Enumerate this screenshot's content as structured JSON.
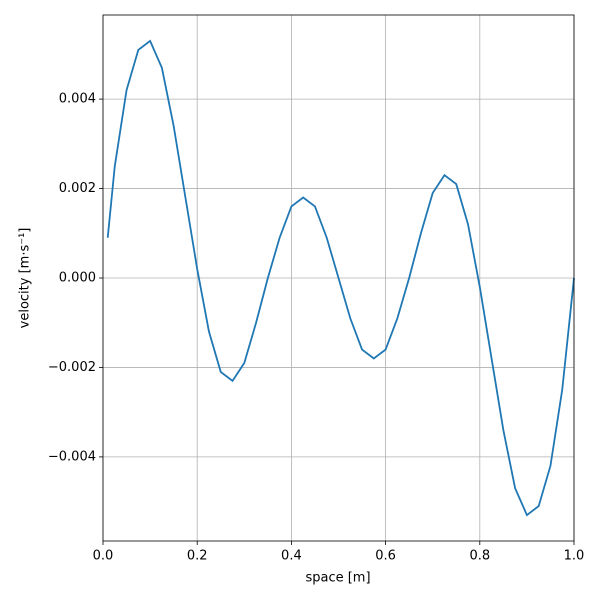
{
  "chart_data": {
    "type": "line",
    "xlabel": "space [m]",
    "ylabel": "velocity [m·s⁻¹]",
    "x": [
      0.01,
      0.025,
      0.05,
      0.075,
      0.1,
      0.125,
      0.15,
      0.175,
      0.2,
      0.225,
      0.25,
      0.275,
      0.3,
      0.325,
      0.35,
      0.375,
      0.4,
      0.425,
      0.45,
      0.475,
      0.5,
      0.525,
      0.55,
      0.575,
      0.6,
      0.625,
      0.65,
      0.675,
      0.7,
      0.725,
      0.75,
      0.775,
      0.8,
      0.825,
      0.85,
      0.875,
      0.9,
      0.925,
      0.95,
      0.975,
      1.0
    ],
    "series": [
      {
        "color": "#1f77b4",
        "values": [
          0.0009,
          0.0025,
          0.0042,
          0.0051,
          0.0053,
          0.0047,
          0.0034,
          0.0018,
          0.0002,
          -0.0012,
          -0.0021,
          -0.0023,
          -0.0019,
          -0.001,
          0.0,
          0.0009,
          0.0016,
          0.0018,
          0.0016,
          0.0009,
          0.0,
          -0.0009,
          -0.0016,
          -0.0018,
          -0.0016,
          -0.0009,
          0.0,
          0.001,
          0.0019,
          0.0023,
          0.0021,
          0.0012,
          -0.0002,
          -0.0018,
          -0.0034,
          -0.0047,
          -0.0053,
          -0.0051,
          -0.0042,
          -0.0025,
          0.0
        ]
      }
    ],
    "xlim": [
      0,
      1
    ],
    "ylim": [
      -0.00588,
      0.00588
    ],
    "xticks": [
      {
        "value": 0,
        "label": "0.0"
      },
      {
        "value": 0.2,
        "label": "0.2"
      },
      {
        "value": 0.4,
        "label": "0.4"
      },
      {
        "value": 0.6,
        "label": "0.6"
      },
      {
        "value": 0.8,
        "label": "0.8"
      },
      {
        "value": 1,
        "label": "1.0"
      }
    ],
    "yticks": [
      {
        "value": -0.004,
        "label": "−0.004"
      },
      {
        "value": -0.002,
        "label": "−0.002"
      },
      {
        "value": 0,
        "label": "0.000"
      },
      {
        "value": 0.002,
        "label": "0.002"
      },
      {
        "value": 0.004,
        "label": "0.004"
      }
    ],
    "grid": true
  }
}
